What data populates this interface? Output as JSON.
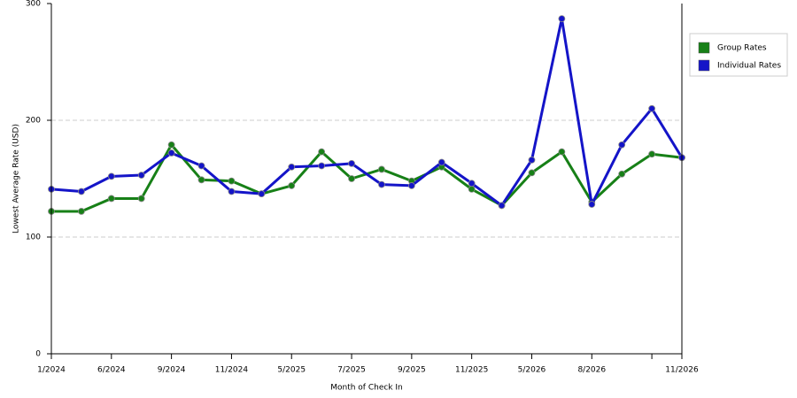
{
  "chart_data": {
    "type": "line",
    "x_label": "Month of Check In",
    "y_label": "Lowest Average Rate (USD)",
    "categories": [
      "1/2024",
      null,
      "6/2024",
      null,
      "9/2024",
      null,
      "11/2024",
      null,
      "5/2025",
      null,
      "7/2025",
      null,
      "9/2025",
      null,
      "11/2025",
      null,
      "5/2026",
      null,
      "8/2026",
      null,
      null,
      "11/2026"
    ],
    "series": [
      {
        "name": "Group Rates",
        "color": "#178017",
        "values": [
          122,
          122,
          133,
          133,
          179,
          149,
          148,
          137,
          144,
          173,
          150,
          158,
          148,
          160,
          141,
          127,
          155,
          173,
          130,
          154,
          171,
          168
        ]
      },
      {
        "name": "Individual Rates",
        "color": "#1414c8",
        "values": [
          141,
          139,
          152,
          153,
          172,
          161,
          139,
          137,
          160,
          161,
          163,
          145,
          144,
          164,
          146,
          127,
          166,
          287,
          128,
          179,
          210,
          168
        ]
      }
    ],
    "ylim": [
      0,
      300
    ],
    "yticks": [
      0,
      100,
      200,
      300
    ],
    "grid": true,
    "legend": "right"
  }
}
